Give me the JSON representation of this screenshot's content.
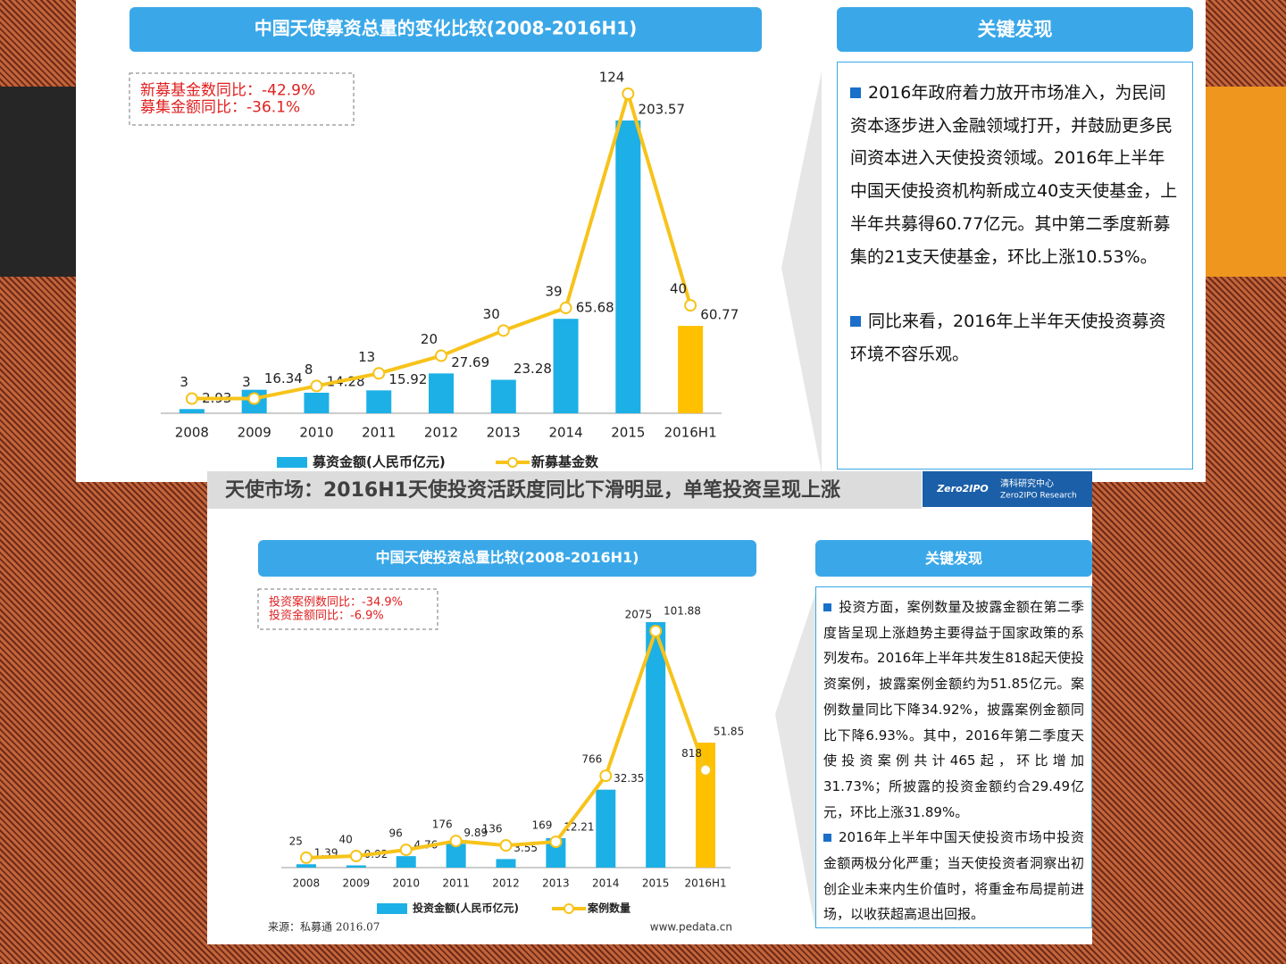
{
  "chart_data": [
    {
      "type": "combo",
      "title": "中国天使募资总量的变化比较(2008-2016H1)",
      "annotations": [
        "新募基金数同比：-42.9%",
        "募集金额同比：-36.1%"
      ],
      "categories": [
        "2008",
        "2009",
        "2010",
        "2011",
        "2012",
        "2013",
        "2014",
        "2015",
        "2016H1"
      ],
      "series": [
        {
          "name": "募资金额(人民币亿元)",
          "type": "bar",
          "color": "#1cb0e6",
          "colors": [
            "#1cb0e6",
            "#1cb0e6",
            "#1cb0e6",
            "#1cb0e6",
            "#1cb0e6",
            "#1cb0e6",
            "#1cb0e6",
            "#1cb0e6",
            "#ffc000"
          ],
          "values": [
            2.93,
            16.34,
            14.28,
            15.92,
            27.69,
            23.28,
            65.68,
            203.57,
            60.77
          ]
        },
        {
          "name": "新募基金数",
          "type": "line",
          "axis": "y2",
          "color": "#f7c31a",
          "values": [
            3,
            3,
            8,
            13,
            20,
            30,
            39,
            124,
            40
          ]
        }
      ]
    },
    {
      "type": "combo",
      "title": "中国天使投资总量比较(2008-2016H1)",
      "annotations": [
        "投资案例数同比：-34.9%",
        "投资金额同比：-6.9%"
      ],
      "categories": [
        "2008",
        "2009",
        "2010",
        "2011",
        "2012",
        "2013",
        "2014",
        "2015",
        "2016H1"
      ],
      "series": [
        {
          "name": "投资金额(人民币亿元)",
          "type": "bar",
          "color": "#1cb0e6",
          "colors": [
            "#1cb0e6",
            "#1cb0e6",
            "#1cb0e6",
            "#1cb0e6",
            "#1cb0e6",
            "#1cb0e6",
            "#1cb0e6",
            "#1cb0e6",
            "#ffc000"
          ],
          "values": [
            1.39,
            0.92,
            4.76,
            9.89,
            3.55,
            12.21,
            32.35,
            101.88,
            51.85
          ]
        },
        {
          "name": "案例数量",
          "type": "line",
          "axis": "y2",
          "color": "#f7c31a",
          "values": [
            25,
            40,
            96,
            176,
            136,
            169,
            766,
            2075,
            818
          ]
        }
      ],
      "source": "来源：私募通  2016.07",
      "credit": "www.pedata.cn"
    }
  ],
  "banner": {
    "title": "天使市场：2016H1天使投资活跃度同比下滑明显，单笔投资呈现上涨",
    "logo": "Zero2IPO",
    "org": "清科研究中心",
    "org_en": "Zero2IPO Research"
  },
  "panels": [
    {
      "title": "关键发现",
      "paragraphs": [
        "2016年政府着力放开市场准入，为民间资本逐步进入金融领域打开，并鼓励更多民间资本进入天使投资领域。2016年上半年中国天使投资机构新成立40支天使基金，上半年共募得60.77亿元。其中第二季度新募集的21支天使基金，环比上涨10.53%。",
        "同比来看，2016年上半年天使投资募资环境不容乐观。"
      ]
    },
    {
      "title": "关键发现",
      "paragraphs": [
        "投资方面，案例数量及披露金额在第二季度皆呈现上涨趋势主要得益于国家政策的系列发布。2016年上半年共发生818起天使投资案例，披露案例金额约为51.85亿元。案例数量同比下降34.92%，披露案例金额同比下降6.93%。其中，2016年第二季度天使投资案例共计465起，环比增加31.73%；所披露的投资金额约合29.49亿元，环比上涨31.89%。",
        "2016年上半年中国天使投资市场中投资金额两极分化严重；当天使投资者洞察出初创企业未来内生价值时，将重金布局提前进场，以收获超高退出回报。"
      ]
    }
  ]
}
